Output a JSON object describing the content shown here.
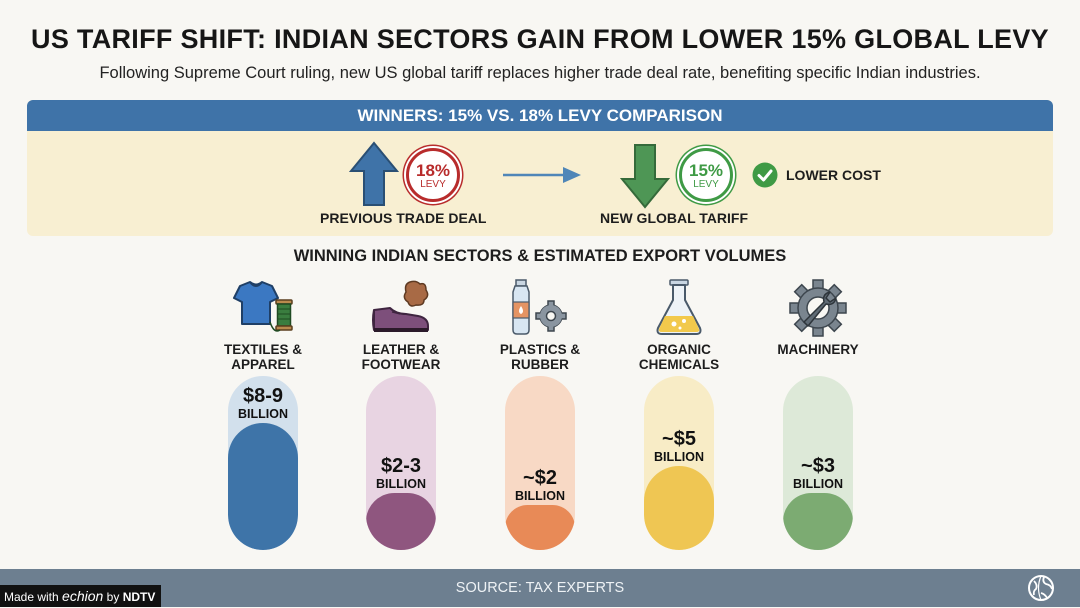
{
  "header": {
    "title": "US TARIFF SHIFT: INDIAN SECTORS GAIN FROM LOWER 15% GLOBAL LEVY",
    "subtitle": "Following Supreme Court ruling, new US global tariff replaces higher trade deal rate, benefiting specific Indian industries."
  },
  "comparison": {
    "heading": "WINNERS: 15% VS. 18% LEVY COMPARISON",
    "previous": {
      "percent": "18%",
      "unit": "LEVY",
      "label": "PREVIOUS TRADE DEAL"
    },
    "current": {
      "percent": "15%",
      "unit": "LEVY",
      "label": "NEW GLOBAL TARIFF"
    },
    "benefit": "LOWER COST",
    "colors": {
      "previous": "#b82c2c",
      "current": "#3f9a45",
      "header": "#3f73a8"
    }
  },
  "sectors": {
    "title": "WINNING INDIAN SECTORS & ESTIMATED EXPORT VOLUMES",
    "items": [
      {
        "name": "TEXTILES & APPAREL",
        "value": "$8-9",
        "unit": "BILLION",
        "level": 0.73,
        "icon": "tshirt-thread-icon",
        "fill": "#3e74a8",
        "track": "#d2e0ec"
      },
      {
        "name": "LEATHER & FOOTWEAR",
        "value": "$2-3",
        "unit": "BILLION",
        "level": 0.33,
        "icon": "shoe-leather-icon",
        "fill": "#8f567f",
        "track": "#e8d4e2"
      },
      {
        "name": "PLASTICS & RUBBER",
        "value": "~$2",
        "unit": "BILLION",
        "level": 0.26,
        "icon": "bottle-gear-icon",
        "fill": "#e88a57",
        "track": "#f8d9c5"
      },
      {
        "name": "ORGANIC CHEMICALS",
        "value": "~$5",
        "unit": "BILLION",
        "level": 0.48,
        "icon": "flask-icon",
        "fill": "#efc653",
        "track": "#f8ecc6"
      },
      {
        "name": "MACHINERY",
        "value": "~$3",
        "unit": "BILLION",
        "level": 0.33,
        "icon": "gear-wrench-icon",
        "fill": "#7cab72",
        "track": "#dde9d8"
      }
    ]
  },
  "footer": {
    "source": "SOURCE: TAX EXPERTS",
    "made_prefix": "Made with",
    "made_brand": "echion",
    "made_by": "by",
    "made_org": "NDTV"
  }
}
